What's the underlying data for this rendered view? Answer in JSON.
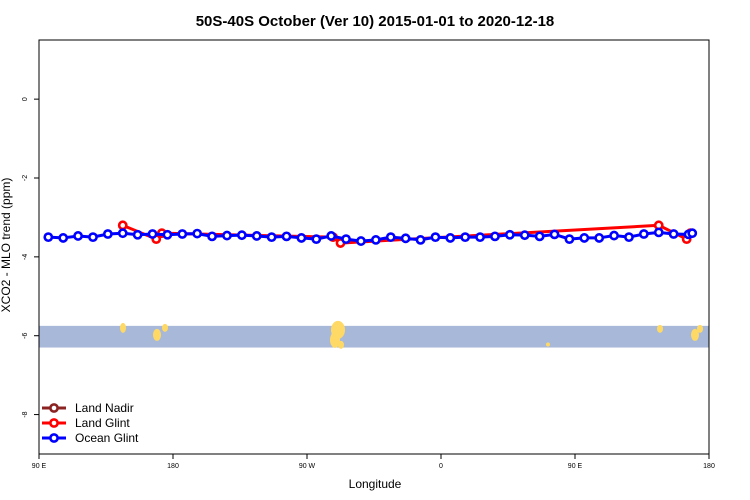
{
  "chart_data": {
    "type": "line",
    "title": "50S-40S October (Ver 10)   2015-01-01 to 2020-12-18",
    "xlabel": "Longitude",
    "ylabel": "XCO2 - MLO trend (ppm)",
    "xlim": [
      90,
      450
    ],
    "ylim": [
      -9,
      1.5
    ],
    "x_ticks": [
      {
        "value": 90,
        "label": "90 E"
      },
      {
        "value": 162,
        "label": "180"
      },
      {
        "value": 234,
        "label": "90 W"
      },
      {
        "value": 306,
        "label": "0"
      },
      {
        "value": 378,
        "label": "90 E"
      },
      {
        "value": 450,
        "label": "180"
      }
    ],
    "y_ticks": [
      {
        "value": 0,
        "label": "0"
      },
      {
        "value": -2,
        "label": "-2"
      },
      {
        "value": -4,
        "label": "-4"
      },
      {
        "value": -6,
        "label": "-6"
      },
      {
        "value": -8,
        "label": "-8"
      }
    ],
    "series": [
      {
        "name": "Land Nadir",
        "color": "#8b2323",
        "x": [],
        "y": []
      },
      {
        "name": "Land Glint",
        "color": "#ff0000",
        "x": [
          135,
          153,
          156,
          248,
          252,
          423,
          438,
          440
        ],
        "y": [
          -3.2,
          -3.55,
          -3.4,
          -3.5,
          -3.65,
          -3.2,
          -3.55,
          -3.4
        ]
      },
      {
        "name": "Ocean Glint",
        "color": "#0000ff",
        "x": [
          95,
          103,
          111,
          119,
          127,
          135,
          143,
          151,
          159,
          167,
          175,
          183,
          191,
          199,
          207,
          215,
          223,
          231,
          239,
          247,
          255,
          263,
          271,
          279,
          287,
          295,
          303,
          311,
          319,
          327,
          335,
          343,
          351,
          359,
          367,
          375,
          383,
          391,
          399,
          407,
          415,
          423,
          431,
          439,
          441
        ],
        "y": [
          -3.5,
          -3.52,
          -3.47,
          -3.5,
          -3.42,
          -3.4,
          -3.44,
          -3.42,
          -3.44,
          -3.42,
          -3.41,
          -3.48,
          -3.46,
          -3.45,
          -3.47,
          -3.5,
          -3.48,
          -3.52,
          -3.55,
          -3.47,
          -3.55,
          -3.6,
          -3.57,
          -3.5,
          -3.53,
          -3.57,
          -3.5,
          -3.52,
          -3.5,
          -3.5,
          -3.48,
          -3.44,
          -3.45,
          -3.48,
          -3.43,
          -3.55,
          -3.52,
          -3.52,
          -3.46,
          -3.5,
          -3.42,
          -3.38,
          -3.42,
          -3.43,
          -3.4
        ]
      }
    ],
    "legend_position": "bottom-left",
    "grid": false,
    "map_strip": {
      "ocean_color": "#a8b8d8",
      "land_color": "#ffd966",
      "y_range": [
        -6.3,
        -5.75
      ]
    }
  }
}
